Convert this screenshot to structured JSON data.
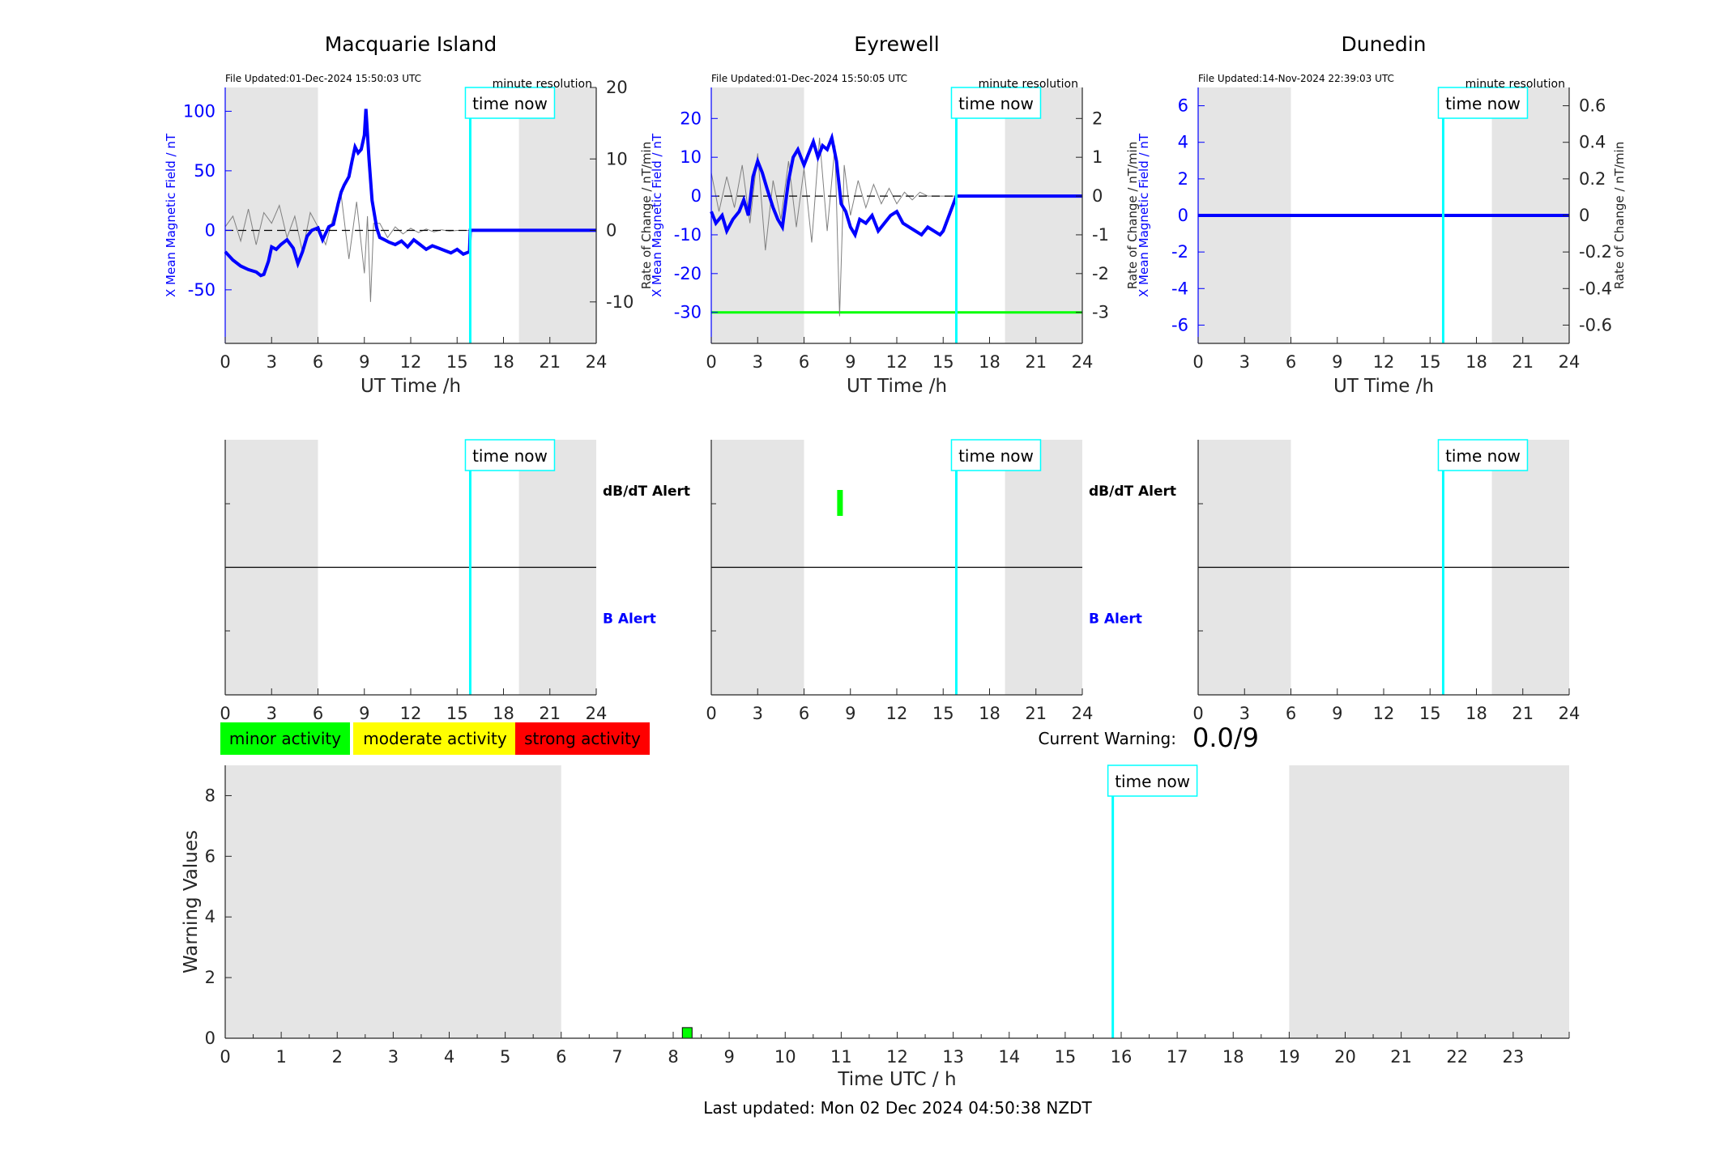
{
  "time_now_label": "time now",
  "legend": [
    {
      "label": "minor activity",
      "color": "#00ff00"
    },
    {
      "label": "moderate activity",
      "color": "#ffff00"
    },
    {
      "label": "strong activity",
      "color": "#ff0000"
    }
  ],
  "current_warning": {
    "label": "Current Warning:",
    "value": "0.0/9"
  },
  "last_updated": "Last updated: Mon 02 Dec 2024 04:50:38 NZDT",
  "colors": {
    "x_field": "#0000ff",
    "rate": "#808080",
    "time_now": "#00ffff",
    "night": "#e5e5e5",
    "threshold": "#00ff00"
  },
  "chart_data": [
    {
      "type": "line",
      "title": "Macquarie Island",
      "file_updated": "File Updated:01-Dec-2024 15:50:03 UTC",
      "resolution": "minute resolution",
      "xlabel": "UT Time /h",
      "ylabel_left": "X Mean Magnetic Field / nT",
      "ylabel_right": "Rate of Change / nT/min",
      "xlim": [
        0,
        24
      ],
      "ylim_left": [
        -95,
        120
      ],
      "ylim_right": [
        -15.8,
        20
      ],
      "x_ticks": [
        0,
        3,
        6,
        9,
        12,
        15,
        18,
        21,
        24
      ],
      "y_ticks_left": [
        -50,
        0,
        50,
        100
      ],
      "y_ticks_right": [
        -10,
        0,
        10,
        20
      ],
      "night_bands": [
        [
          0,
          6
        ],
        [
          19,
          24
        ]
      ],
      "time_now": 15.85,
      "series": [
        {
          "axis": "left",
          "x": [
            0,
            0.5,
            1,
            1.5,
            2,
            2.3,
            2.5,
            2.8,
            3,
            3.3,
            3.6,
            4,
            4.4,
            4.7,
            5,
            5.3,
            5.6,
            6,
            6.3,
            6.7,
            7,
            7.3,
            7.5,
            7.7,
            8,
            8.2,
            8.4,
            8.6,
            8.8,
            9,
            9.1,
            9.3,
            9.5,
            9.8,
            10,
            10.3,
            10.6,
            11,
            11.4,
            11.8,
            12.2,
            12.6,
            13,
            13.4,
            13.8,
            14.2,
            14.6,
            15,
            15.4,
            15.8,
            15.85,
            16,
            18,
            20,
            22,
            24
          ],
          "y": [
            -18,
            -25,
            -30,
            -33,
            -35,
            -38,
            -37,
            -26,
            -14,
            -16,
            -12,
            -8,
            -15,
            -28,
            -18,
            -5,
            0,
            2,
            -8,
            3,
            5,
            22,
            32,
            38,
            45,
            58,
            70,
            65,
            68,
            80,
            102,
            60,
            25,
            2,
            -6,
            -8,
            -10,
            -12,
            -9,
            -14,
            -8,
            -12,
            -16,
            -13,
            -15,
            -17,
            -19,
            -16,
            -20,
            -18,
            0,
            0,
            0,
            0,
            0,
            0
          ]
        },
        {
          "axis": "right",
          "x": [
            0,
            0.5,
            1,
            1.5,
            2,
            2.5,
            3,
            3.5,
            4,
            4.5,
            5,
            5.5,
            6,
            6.5,
            7,
            7.5,
            8,
            8.5,
            9,
            9.2,
            9.4,
            9.6,
            10,
            10.5,
            11,
            11.5,
            12,
            12.5,
            13,
            13.5,
            14,
            14.5,
            15,
            15.5,
            15.85
          ],
          "y": [
            0.5,
            2,
            -1.5,
            3,
            -2,
            2.5,
            1,
            3.5,
            -1,
            2,
            -3,
            2.5,
            0.5,
            -2,
            2,
            5,
            -4,
            4,
            -6,
            2,
            -10,
            1,
            1,
            -1,
            0.5,
            -0.5,
            0.3,
            -0.3,
            0.2,
            -0.2,
            0.1,
            -0.1,
            0,
            0,
            0
          ]
        },
        {
          "axis": "right",
          "x": [
            0,
            15.85
          ],
          "y": [
            0,
            0
          ]
        }
      ]
    },
    {
      "type": "line",
      "title": "Eyrewell",
      "file_updated": "File Updated:01-Dec-2024 15:50:05 UTC",
      "resolution": "minute resolution",
      "xlabel": "UT Time /h",
      "ylabel_left": "X Mean Magnetic Field / nT",
      "ylabel_right": "Rate of Change / nT/min",
      "xlim": [
        0,
        24
      ],
      "ylim_left": [
        -38,
        28
      ],
      "ylim_right": [
        -3.8,
        2.8
      ],
      "x_ticks": [
        0,
        3,
        6,
        9,
        12,
        15,
        18,
        21,
        24
      ],
      "y_ticks_left": [
        -30,
        -20,
        -10,
        0,
        10,
        20
      ],
      "y_ticks_right": [
        -3,
        -2,
        -1,
        0,
        1,
        2
      ],
      "night_bands": [
        [
          0,
          6
        ],
        [
          19,
          24
        ]
      ],
      "time_now": 15.85,
      "threshold": -30,
      "series": [
        {
          "axis": "left",
          "x": [
            0,
            0.3,
            0.7,
            1,
            1.4,
            1.8,
            2.1,
            2.4,
            2.7,
            3,
            3.3,
            3.6,
            4,
            4.3,
            4.6,
            5,
            5.3,
            5.6,
            6,
            6.3,
            6.6,
            6.9,
            7.2,
            7.5,
            7.8,
            8.1,
            8.4,
            8.7,
            9,
            9.3,
            9.6,
            10,
            10.4,
            10.8,
            11.2,
            11.6,
            12,
            12.4,
            12.8,
            13.2,
            13.6,
            14,
            14.4,
            14.8,
            15,
            15.85,
            16,
            18,
            20,
            22,
            24
          ],
          "y": [
            -4,
            -7,
            -5,
            -9,
            -6,
            -4,
            -1,
            -5,
            5,
            9,
            6,
            2,
            -3,
            -6,
            -8,
            4,
            10,
            12,
            8,
            11,
            14,
            10,
            13,
            12,
            15,
            9,
            -2,
            -4,
            -8,
            -10,
            -6,
            -7,
            -5,
            -9,
            -7,
            -5,
            -4,
            -7,
            -8,
            -9,
            -10,
            -8,
            -9,
            -10,
            -9,
            0,
            0,
            0,
            0,
            0,
            0
          ]
        },
        {
          "axis": "right",
          "x": [
            0,
            0.5,
            1,
            1.5,
            2,
            2.5,
            3,
            3.5,
            4,
            4.5,
            5,
            5.5,
            6,
            6.5,
            7,
            7.5,
            8,
            8.3,
            8.6,
            9,
            9.5,
            10,
            10.5,
            11,
            11.5,
            12,
            12.5,
            13,
            13.5,
            14,
            14.5,
            15,
            15.85
          ],
          "y": [
            0.6,
            -0.4,
            0.5,
            -0.3,
            0.8,
            -0.7,
            1.1,
            -1.4,
            0.4,
            -0.6,
            0.9,
            -0.8,
            0.7,
            -1.2,
            1.5,
            -0.9,
            1.3,
            -3.1,
            0.8,
            -0.5,
            0.4,
            -0.3,
            0.3,
            -0.2,
            0.2,
            -0.2,
            0.1,
            -0.1,
            0.1,
            0,
            0,
            0,
            0
          ]
        },
        {
          "axis": "right",
          "x": [
            0,
            15.85
          ],
          "y": [
            0,
            0
          ]
        }
      ]
    },
    {
      "type": "line",
      "title": "Dunedin",
      "file_updated": "File Updated:14-Nov-2024 22:39:03 UTC",
      "resolution": "minute resolution",
      "xlabel": "UT Time /h",
      "ylabel_left": "X Mean Magnetic Field / nT",
      "ylabel_right": "Rate of Change / nT/min",
      "xlim": [
        0,
        24
      ],
      "ylim_left": [
        -7,
        7
      ],
      "ylim_right": [
        -0.7,
        0.7
      ],
      "x_ticks": [
        0,
        3,
        6,
        9,
        12,
        15,
        18,
        21,
        24
      ],
      "y_ticks_left": [
        -6,
        -4,
        -2,
        0,
        2,
        4,
        6
      ],
      "y_ticks_right": [
        -0.6,
        -0.4,
        -0.2,
        0,
        0.2,
        0.4,
        0.6
      ],
      "night_bands": [
        [
          0,
          6
        ],
        [
          19,
          24
        ]
      ],
      "time_now": 15.85,
      "series": [
        {
          "axis": "left",
          "x": [
            0,
            24
          ],
          "y": [
            0,
            0
          ]
        }
      ]
    },
    {
      "type": "alert",
      "xlim": [
        0,
        24
      ],
      "x_ticks": [
        0,
        3,
        6,
        9,
        12,
        15,
        18,
        21,
        24
      ],
      "night_bands": [
        [
          0,
          6
        ],
        [
          19,
          24
        ]
      ],
      "time_now": 15.85,
      "labels": {
        "dbdt": "dB/dT Alert",
        "b": "B Alert"
      },
      "dbdt_alerts": [],
      "b_alerts": []
    },
    {
      "type": "alert",
      "xlim": [
        0,
        24
      ],
      "x_ticks": [
        0,
        3,
        6,
        9,
        12,
        15,
        18,
        21,
        24
      ],
      "night_bands": [
        [
          0,
          6
        ],
        [
          19,
          24
        ]
      ],
      "time_now": 15.85,
      "labels": {
        "dbdt": "dB/dT Alert",
        "b": "B Alert"
      },
      "dbdt_alerts": [
        {
          "x": 8.3,
          "color": "#00ff00"
        }
      ],
      "b_alerts": []
    },
    {
      "type": "alert",
      "xlim": [
        0,
        24
      ],
      "x_ticks": [
        0,
        3,
        6,
        9,
        12,
        15,
        18,
        21,
        24
      ],
      "night_bands": [
        [
          0,
          6
        ],
        [
          19,
          24
        ]
      ],
      "time_now": 15.85,
      "labels": {
        "dbdt": "",
        "b": ""
      },
      "dbdt_alerts": [],
      "b_alerts": []
    },
    {
      "type": "bar",
      "xlabel": "Time UTC / h",
      "ylabel": "Warning Values",
      "xlim": [
        0,
        24
      ],
      "ylim": [
        0,
        9
      ],
      "x_ticks": [
        0,
        1,
        2,
        3,
        4,
        5,
        6,
        7,
        8,
        9,
        10,
        11,
        12,
        13,
        14,
        15,
        16,
        17,
        18,
        19,
        20,
        21,
        22,
        23
      ],
      "y_ticks": [
        0,
        2,
        4,
        6,
        8
      ],
      "night_bands": [
        [
          0,
          6
        ],
        [
          19,
          24
        ]
      ],
      "time_now": 15.85,
      "bars": [
        {
          "x": 8.25,
          "value": 0.35,
          "color": "#00ff00"
        }
      ]
    }
  ]
}
